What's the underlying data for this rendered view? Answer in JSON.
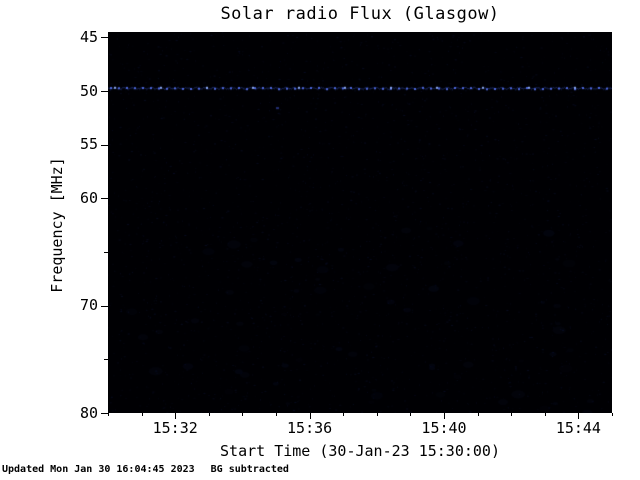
{
  "title": "Solar radio Flux (Glasgow)",
  "axes": {
    "ylabel": "Frequency [MHz]",
    "xlabel": "Start Time (30-Jan-23 15:30:00)"
  },
  "footer": {
    "updated": "Updated Mon Jan 30 16:04:45 2023",
    "note": "BG subtracted"
  },
  "chart_data": {
    "type": "heatmap",
    "title": "Solar radio Flux (Glasgow)",
    "xlabel": "Start Time (30-Jan-23 15:30:00)",
    "ylabel": "Frequency [MHz]",
    "x_range": [
      "15:30:00",
      "15:45:00"
    ],
    "x_tick_labels": [
      "15:32",
      "15:36",
      "15:40",
      "15:44"
    ],
    "x_tick_minutes": [
      2,
      6,
      10,
      14
    ],
    "x_minor_tick_minutes": [
      0,
      1,
      3,
      4,
      5,
      7,
      8,
      9,
      11,
      12,
      13,
      15
    ],
    "y_range_mhz": [
      44.5,
      80
    ],
    "y_tick_values": [
      45,
      50,
      55,
      60,
      70,
      80
    ],
    "y_minor_tick_values": [
      65,
      75
    ],
    "background_color": "#000003",
    "legend": "none",
    "grid": "off",
    "features": [
      {
        "kind": "horizontal-band",
        "frequency_mhz": 49.7,
        "description": "narrow persistent blue emission band spanning the full time range with regularly spaced brighter dots",
        "base_color": "#28409b",
        "dot_color": "#5a78ff",
        "bright_dot_color": "#96b4ff",
        "dot_spacing_px": 8
      },
      {
        "kind": "point",
        "frequency_mhz": 51.5,
        "time_minute": 5,
        "description": "faint isolated blue speck below the band",
        "color": "#3c50c8"
      },
      {
        "kind": "noise",
        "description": "sparse very faint dark-blue background noise, slightly denser in the lower half",
        "color": "#1e2d82"
      }
    ]
  }
}
